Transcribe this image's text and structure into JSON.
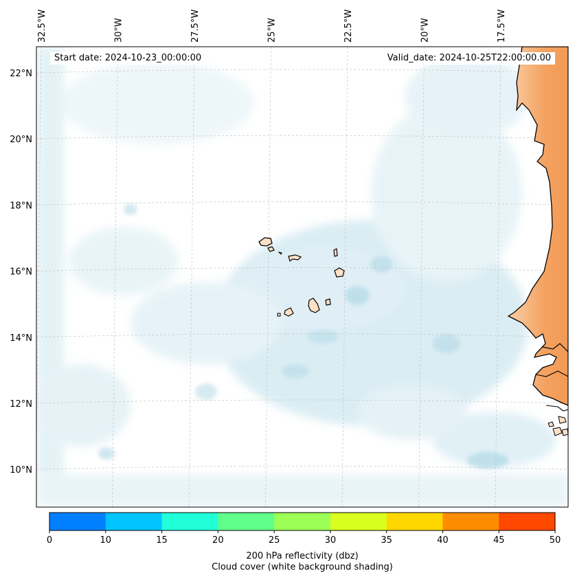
{
  "map": {
    "start_date_label": "Start date: 2024-10-23_00:00:00",
    "valid_date_label": "Valid_date: 2024-10-25T22:00:00.00",
    "longitude_labels": [
      {
        "value": -32.5,
        "text": "32.5°W"
      },
      {
        "value": -30.0,
        "text": "30°W"
      },
      {
        "value": -27.5,
        "text": "27.5°W"
      },
      {
        "value": -25.0,
        "text": "25°W"
      },
      {
        "value": -22.5,
        "text": "22.5°W"
      },
      {
        "value": -20.0,
        "text": "20°W"
      },
      {
        "value": -17.5,
        "text": "17.5°W"
      }
    ],
    "latitude_labels": [
      {
        "value": 22,
        "text": "22°N"
      },
      {
        "value": 20,
        "text": "20°N"
      },
      {
        "value": 18,
        "text": "18°N"
      },
      {
        "value": 16,
        "text": "16°N"
      },
      {
        "value": 14,
        "text": "14°N"
      },
      {
        "value": 12,
        "text": "12°N"
      },
      {
        "value": 10,
        "text": "10°N"
      }
    ],
    "colors": {
      "land": "#f4a261",
      "island": "#fde0c5",
      "cloud": "#b9dde9",
      "coastline": "#000000",
      "gridline": "#bbbbbb"
    }
  },
  "colorbar": {
    "ticks": [
      "0",
      "10",
      "15",
      "20",
      "25",
      "30",
      "35",
      "40",
      "45",
      "50"
    ],
    "colors": [
      "#0080ff",
      "#00c4ff",
      "#20ffd8",
      "#60ff8c",
      "#9cff56",
      "#d8ff20",
      "#ffd700",
      "#ff8c00",
      "#ff4800"
    ],
    "label": "200 hPa reflectivity (dbz)",
    "sublabel": "Cloud cover (white background shading)"
  }
}
